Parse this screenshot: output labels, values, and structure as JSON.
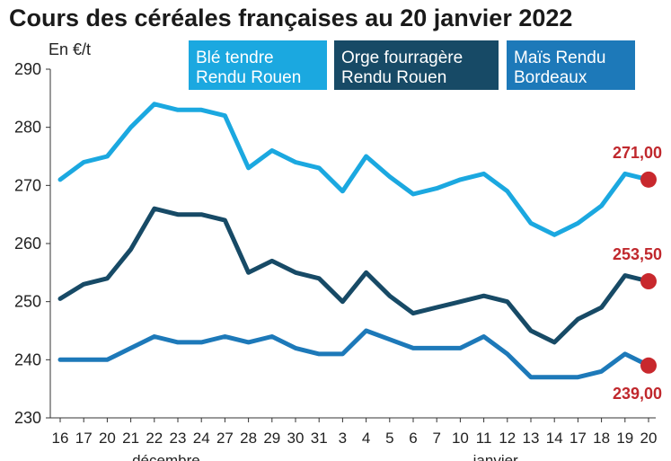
{
  "chart_data": {
    "type": "line",
    "title": "Cours des céréales françaises au 20 janvier 2022",
    "unit_label": "En €/t",
    "ylim": [
      230,
      290
    ],
    "yticks": [
      230,
      240,
      250,
      260,
      270,
      280,
      290
    ],
    "grid": false,
    "categories": [
      "16",
      "17",
      "20",
      "21",
      "22",
      "23",
      "24",
      "27",
      "28",
      "29",
      "30",
      "31",
      "3",
      "4",
      "5",
      "6",
      "7",
      "10",
      "11",
      "12",
      "13",
      "14",
      "17",
      "18",
      "19",
      "20"
    ],
    "months": [
      {
        "label": "décembre",
        "center_index": 4.5
      },
      {
        "label": "janvier",
        "center_index": 18.5
      }
    ],
    "series": [
      {
        "name": "Blé tendre Rendu Rouen",
        "name_lines": [
          "Blé tendre",
          "Rendu Rouen"
        ],
        "color": "#1ba8e0",
        "values": [
          271,
          274,
          275,
          280,
          284,
          283,
          283,
          282,
          273,
          276,
          274,
          273,
          269,
          275,
          271.5,
          268.5,
          269.5,
          271,
          272,
          269,
          263.5,
          261.5,
          263.5,
          266.5,
          272,
          271
        ],
        "end_label": "271,00",
        "end_label_pos": "above"
      },
      {
        "name": "Orge fourragère Rendu Rouen",
        "name_lines": [
          "Orge fourragère",
          "Rendu Rouen"
        ],
        "color": "#174a66",
        "values": [
          250.5,
          253,
          254,
          259,
          266,
          265,
          265,
          264,
          255,
          257,
          255,
          254,
          250,
          255,
          251,
          248,
          249,
          250,
          251,
          250,
          245,
          243,
          247,
          249,
          254.5,
          253.5
        ],
        "end_label": "253,50",
        "end_label_pos": "above"
      },
      {
        "name": "Maïs Rendu Bordeaux",
        "name_lines": [
          "Maïs Rendu",
          "Bordeaux"
        ],
        "color": "#1d79b9",
        "values": [
          240,
          240,
          240,
          242,
          244,
          243,
          243,
          244,
          243,
          244,
          242,
          241,
          241,
          245,
          243.5,
          242,
          242,
          242,
          244,
          241,
          237,
          237,
          237,
          238,
          241,
          239
        ],
        "end_label": "239,00",
        "end_label_pos": "below"
      }
    ],
    "end_marker_color": "#c8282d",
    "legend_position": "top"
  }
}
